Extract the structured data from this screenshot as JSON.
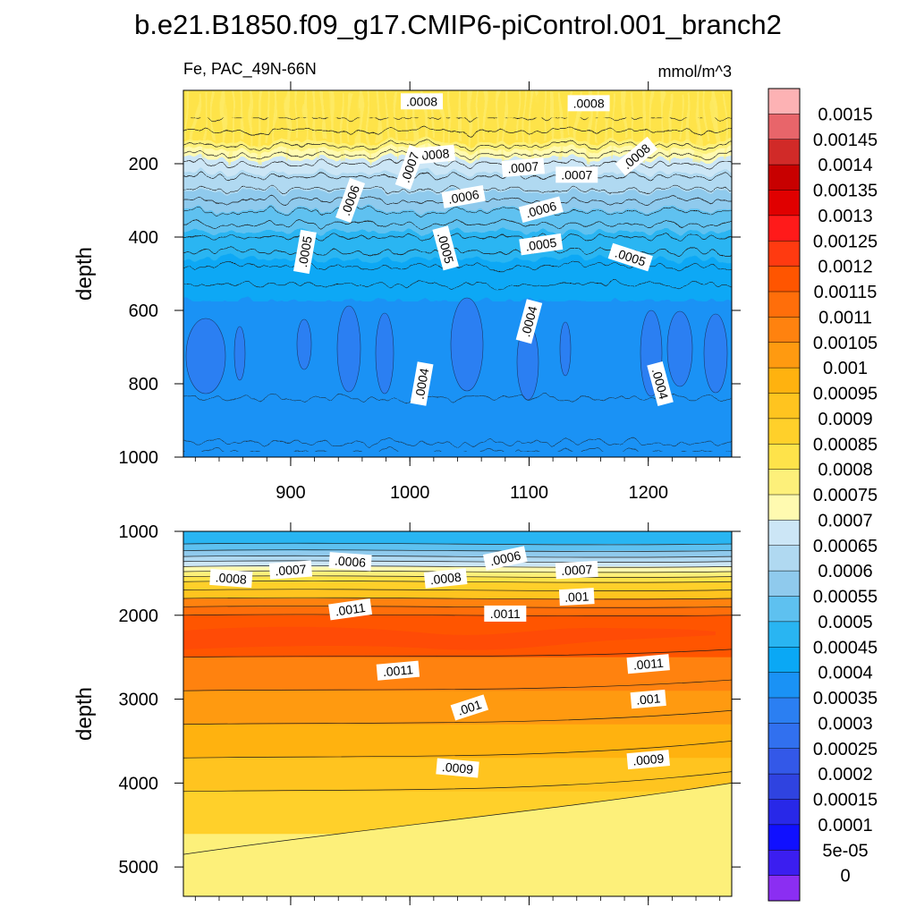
{
  "title": "b.e21.B1850.f09_g17.CMIP6-piControl.001_branch2",
  "subtitle_left": "Fe, PAC_49N-66N",
  "subtitle_right": "mmol/m^3",
  "colorbar": {
    "labels": [
      "0.0015",
      "0.00145",
      "0.0014",
      "0.00135",
      "0.0013",
      "0.00125",
      "0.0012",
      "0.00115",
      "0.0011",
      "0.00105",
      "0.001",
      "0.00095",
      "0.0009",
      "0.00085",
      "0.0008",
      "0.00075",
      "0.0007",
      "0.00065",
      "0.0006",
      "0.00055",
      "0.0005",
      "0.00045",
      "0.0004",
      "0.00035",
      "0.0003",
      "0.00025",
      "0.0002",
      "0.00015",
      "0.0001",
      "5e-05",
      "0"
    ],
    "colors_top_to_bottom": [
      "#fdb2b4",
      "#e8656a",
      "#d12a28",
      "#c80000",
      "#e00000",
      "#ff1a1a",
      "#ff3a10",
      "#ff5500",
      "#ff6e0a",
      "#ff820f",
      "#ff9a10",
      "#ffb20f",
      "#ffc41f",
      "#ffd02a",
      "#fee34a",
      "#fdf07a",
      "#fffab0",
      "#cce6f6",
      "#b0d9f1",
      "#8fcaed",
      "#5ec1f0",
      "#29b5f2",
      "#0aa8f5",
      "#1a92f5",
      "#2b7ff2",
      "#3170ef",
      "#3358e8",
      "#2f43e0",
      "#2828e8",
      "#1010ff",
      "#3b1ef0",
      "#8b2ef2"
    ]
  },
  "chart_data": [
    {
      "type": "heatmap",
      "panel": "top",
      "variable": "Fe",
      "region": "PAC_49N-66N",
      "units": "mmol/m^3",
      "xlim": [
        810,
        1270
      ],
      "ylim": [
        1000,
        0
      ],
      "x_ticks": [
        900,
        1000,
        1100,
        1200
      ],
      "y_ticks": [
        200,
        400,
        600,
        800,
        1000
      ],
      "ylabel": "depth",
      "contour_labels": [
        {
          "text": ".0008",
          "x": 1010,
          "depth": 30
        },
        {
          "text": ".0008",
          "x": 1150,
          "depth": 35
        },
        {
          "text": ".0008",
          "x": 1020,
          "depth": 175
        },
        {
          "text": ".0008",
          "x": 1190,
          "depth": 180
        },
        {
          "text": ".0007",
          "x": 1000,
          "depth": 210
        },
        {
          "text": ".0007",
          "x": 1095,
          "depth": 210
        },
        {
          "text": ".0007",
          "x": 1140,
          "depth": 230
        },
        {
          "text": ".0006",
          "x": 950,
          "depth": 300
        },
        {
          "text": ".0006",
          "x": 1045,
          "depth": 290
        },
        {
          "text": ".0006",
          "x": 1110,
          "depth": 325
        },
        {
          "text": ".0005",
          "x": 912,
          "depth": 440
        },
        {
          "text": ".0005",
          "x": 1030,
          "depth": 430
        },
        {
          "text": ".0005",
          "x": 1110,
          "depth": 420
        },
        {
          "text": ".0005",
          "x": 1185,
          "depth": 455
        },
        {
          "text": ".0004",
          "x": 1100,
          "depth": 630
        },
        {
          "text": ".0004",
          "x": 1010,
          "depth": 800
        },
        {
          "text": ".0004",
          "x": 1210,
          "depth": 800
        }
      ]
    },
    {
      "type": "heatmap",
      "panel": "bottom",
      "variable": "Fe",
      "region": "PAC_49N-66N",
      "units": "mmol/m^3",
      "xlim": [
        810,
        1270
      ],
      "ylim": [
        5350,
        1000
      ],
      "y_ticks": [
        1000,
        2000,
        3000,
        4000,
        5000
      ],
      "ylabel": "depth",
      "contour_labels": [
        {
          "text": ".0008",
          "x": 850,
          "depth": 1560
        },
        {
          "text": ".0007",
          "x": 900,
          "depth": 1460
        },
        {
          "text": ".0006",
          "x": 950,
          "depth": 1360
        },
        {
          "text": ".0008",
          "x": 1030,
          "depth": 1560
        },
        {
          "text": ".0006",
          "x": 1080,
          "depth": 1320
        },
        {
          "text": ".0007",
          "x": 1140,
          "depth": 1460
        },
        {
          "text": ".001",
          "x": 1140,
          "depth": 1780
        },
        {
          "text": ".0011",
          "x": 950,
          "depth": 1930
        },
        {
          "text": ".0011",
          "x": 1080,
          "depth": 1980
        },
        {
          "text": ".0011",
          "x": 990,
          "depth": 2660
        },
        {
          "text": ".0011",
          "x": 1200,
          "depth": 2580
        },
        {
          "text": ".001",
          "x": 1050,
          "depth": 3100
        },
        {
          "text": ".001",
          "x": 1200,
          "depth": 3000
        },
        {
          "text": ".0009",
          "x": 1040,
          "depth": 3820
        },
        {
          "text": ".0009",
          "x": 1200,
          "depth": 3720
        }
      ]
    }
  ]
}
